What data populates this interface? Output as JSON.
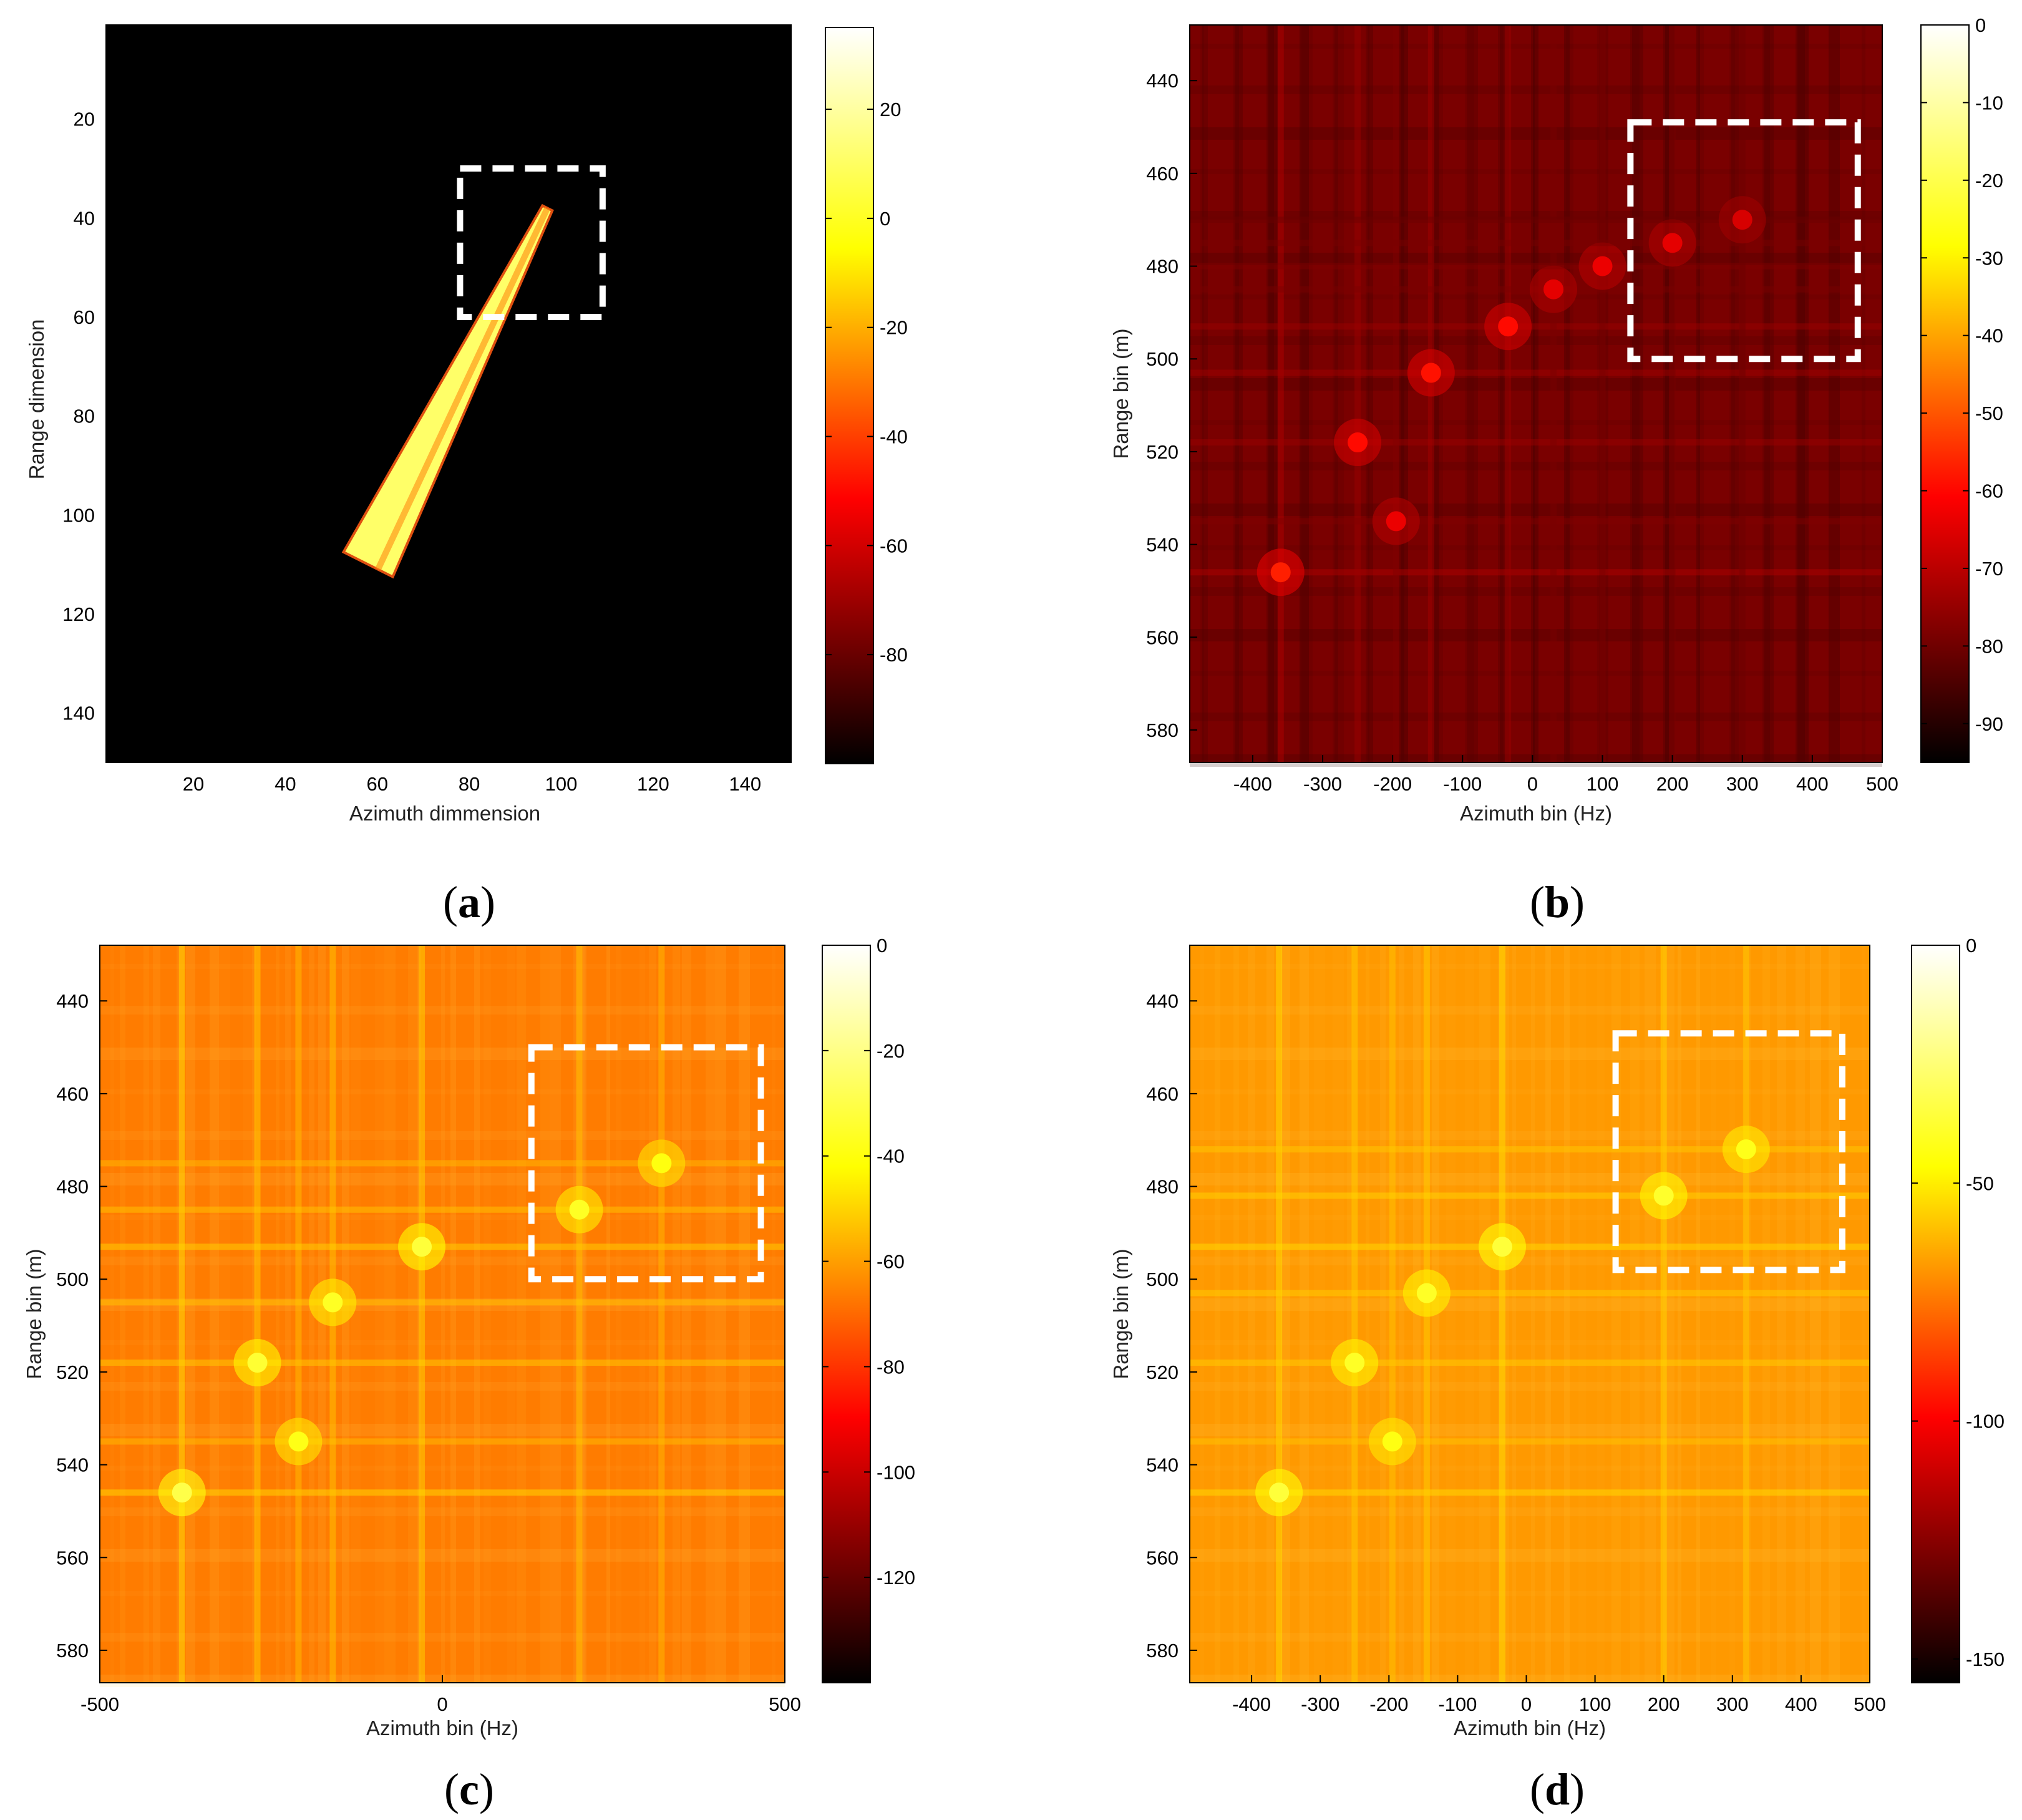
{
  "chart_data": [
    {
      "id": "a",
      "type": "heatmap",
      "caption": "a",
      "caption_prefix": "(",
      "caption_suffix": ")",
      "xlabel": "Azimuth dimmension",
      "ylabel": "Range dimension",
      "xlim": [
        1,
        150
      ],
      "ylim": [
        1,
        150
      ],
      "y_reversed": true,
      "xticks": [
        20,
        40,
        60,
        80,
        100,
        120,
        140
      ],
      "yticks": [
        20,
        40,
        60,
        80,
        100,
        120,
        140
      ],
      "colorbar": {
        "min": -100,
        "max": 35,
        "ticks": [
          20,
          0,
          -20,
          -40,
          -60,
          -80
        ],
        "side": "right"
      },
      "colormap": "hot",
      "background_level": -100,
      "target_ship": {
        "stern": [
          58,
          110
        ],
        "bow": [
          97,
          38
        ],
        "width": 6,
        "level": 15
      },
      "highlight_box": {
        "x": [
          78,
          109
        ],
        "y": [
          30,
          60
        ],
        "color": "#ffffff",
        "style": "dashed"
      }
    },
    {
      "id": "b",
      "type": "heatmap",
      "caption": "b",
      "caption_prefix": "(",
      "caption_suffix": ")",
      "xlabel": "Azimuth bin (Hz)",
      "ylabel": "Range bin (m)",
      "xlim": [
        -490,
        500
      ],
      "ylim": [
        428,
        587
      ],
      "y_reversed": true,
      "xticks": [
        -400,
        -300,
        -200,
        -100,
        0,
        100,
        200,
        300,
        400,
        500
      ],
      "yticks": [
        440,
        460,
        480,
        500,
        520,
        540,
        560,
        580
      ],
      "colorbar": {
        "min": -95,
        "max": 0,
        "ticks": [
          0,
          -10,
          -20,
          -30,
          -40,
          -50,
          -60,
          -70,
          -80,
          -90
        ],
        "side": "right"
      },
      "colormap": "hot",
      "background_level": -78,
      "scatterers": [
        {
          "x": -360,
          "y": 546,
          "level": -55
        },
        {
          "x": -250,
          "y": 518,
          "level": -58
        },
        {
          "x": -195,
          "y": 535,
          "level": -62
        },
        {
          "x": -145,
          "y": 503,
          "level": -57
        },
        {
          "x": -35,
          "y": 493,
          "level": -58
        },
        {
          "x": 30,
          "y": 485,
          "level": -63
        },
        {
          "x": 100,
          "y": 480,
          "level": -62
        },
        {
          "x": 200,
          "y": 475,
          "level": -63
        },
        {
          "x": 300,
          "y": 470,
          "level": -65
        }
      ],
      "highlight_box": {
        "x": [
          140,
          465
        ],
        "y": [
          449,
          500
        ],
        "color": "#ffffff",
        "style": "dashed"
      }
    },
    {
      "id": "c",
      "type": "heatmap",
      "caption": "c",
      "caption_prefix": "(",
      "caption_suffix": ")",
      "xlabel": "Azimuth bin (Hz)",
      "ylabel": "Range bin (m)",
      "xlim": [
        -500,
        500
      ],
      "ylim": [
        428,
        587
      ],
      "y_reversed": true,
      "xticks": [
        -500,
        0,
        500
      ],
      "yticks": [
        440,
        460,
        480,
        500,
        520,
        540,
        560,
        580
      ],
      "colorbar": {
        "min": -140,
        "max": 0,
        "ticks": [
          0,
          -20,
          -40,
          -60,
          -80,
          -100,
          -120
        ],
        "side": "right"
      },
      "colormap": "hot",
      "background_level": -62,
      "scatterers": [
        {
          "x": -380,
          "y": 546,
          "level": -25
        },
        {
          "x": -270,
          "y": 518,
          "level": -28
        },
        {
          "x": -210,
          "y": 535,
          "level": -32
        },
        {
          "x": -160,
          "y": 505,
          "level": -30
        },
        {
          "x": -30,
          "y": 493,
          "level": -27
        },
        {
          "x": 200,
          "y": 485,
          "level": -30
        },
        {
          "x": 320,
          "y": 475,
          "level": -33
        }
      ],
      "highlight_box": {
        "x": [
          130,
          465
        ],
        "y": [
          450,
          500
        ],
        "color": "#ffffff",
        "style": "dashed"
      }
    },
    {
      "id": "d",
      "type": "heatmap",
      "caption": "d",
      "caption_prefix": "(",
      "caption_suffix": ")",
      "xlabel": "Azimuth bin (Hz)",
      "ylabel": "Range bin (m)",
      "xlim": [
        -490,
        500
      ],
      "ylim": [
        428,
        587
      ],
      "y_reversed": true,
      "xticks": [
        -400,
        -300,
        -200,
        -100,
        0,
        100,
        200,
        300,
        400,
        500
      ],
      "yticks": [
        440,
        460,
        480,
        500,
        520,
        540,
        560,
        580
      ],
      "colorbar": {
        "min": -155,
        "max": 0,
        "ticks": [
          0,
          -50,
          -100,
          -150
        ],
        "side": "right"
      },
      "colormap": "hot",
      "background_level": -62,
      "scatterers": [
        {
          "x": -360,
          "y": 546,
          "level": -30
        },
        {
          "x": -250,
          "y": 518,
          "level": -33
        },
        {
          "x": -195,
          "y": 535,
          "level": -36
        },
        {
          "x": -145,
          "y": 503,
          "level": -33
        },
        {
          "x": -35,
          "y": 493,
          "level": -30
        },
        {
          "x": 200,
          "y": 482,
          "level": -32
        },
        {
          "x": 320,
          "y": 472,
          "level": -35
        }
      ],
      "highlight_box": {
        "x": [
          130,
          460
        ],
        "y": [
          447,
          498
        ],
        "color": "#ffffff",
        "style": "dashed"
      }
    }
  ]
}
